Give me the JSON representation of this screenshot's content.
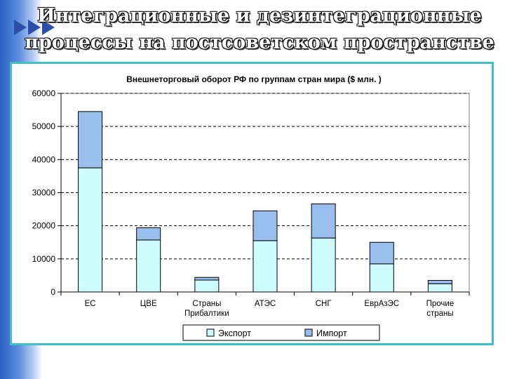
{
  "slide": {
    "title_line1": "Интеграционные и дезинтеграционные",
    "title_line2": "процессы на постсоветском пространстве"
  },
  "colors": {
    "export": "#ccfcff",
    "import": "#99bfee",
    "frame": "#3fbfc8",
    "plot_bg": "#ffffff"
  },
  "chart_data": {
    "type": "bar",
    "stacked": true,
    "title": "Внешнеторговый оборот РФ по группам стран мира ($ млн. )",
    "categories": [
      [
        "ЕС"
      ],
      [
        "ЦВЕ"
      ],
      [
        "Страны",
        "Прибалтики"
      ],
      [
        "АТЭС"
      ],
      [
        "СНГ"
      ],
      [
        "ЕврАзЭС"
      ],
      [
        "Прочие",
        "страны"
      ]
    ],
    "series": [
      {
        "name": "Экспорт",
        "values": [
          37500,
          15700,
          3600,
          15500,
          16300,
          8500,
          2500
        ]
      },
      {
        "name": "Импорт",
        "values": [
          17000,
          3700,
          800,
          9000,
          10300,
          6500,
          1000
        ]
      }
    ],
    "yticks": [
      "0",
      "10000",
      "20000",
      "30000",
      "40000",
      "50000",
      "60000"
    ],
    "ylim": [
      0,
      60000
    ],
    "grid": true,
    "legend_position": "bottom"
  }
}
